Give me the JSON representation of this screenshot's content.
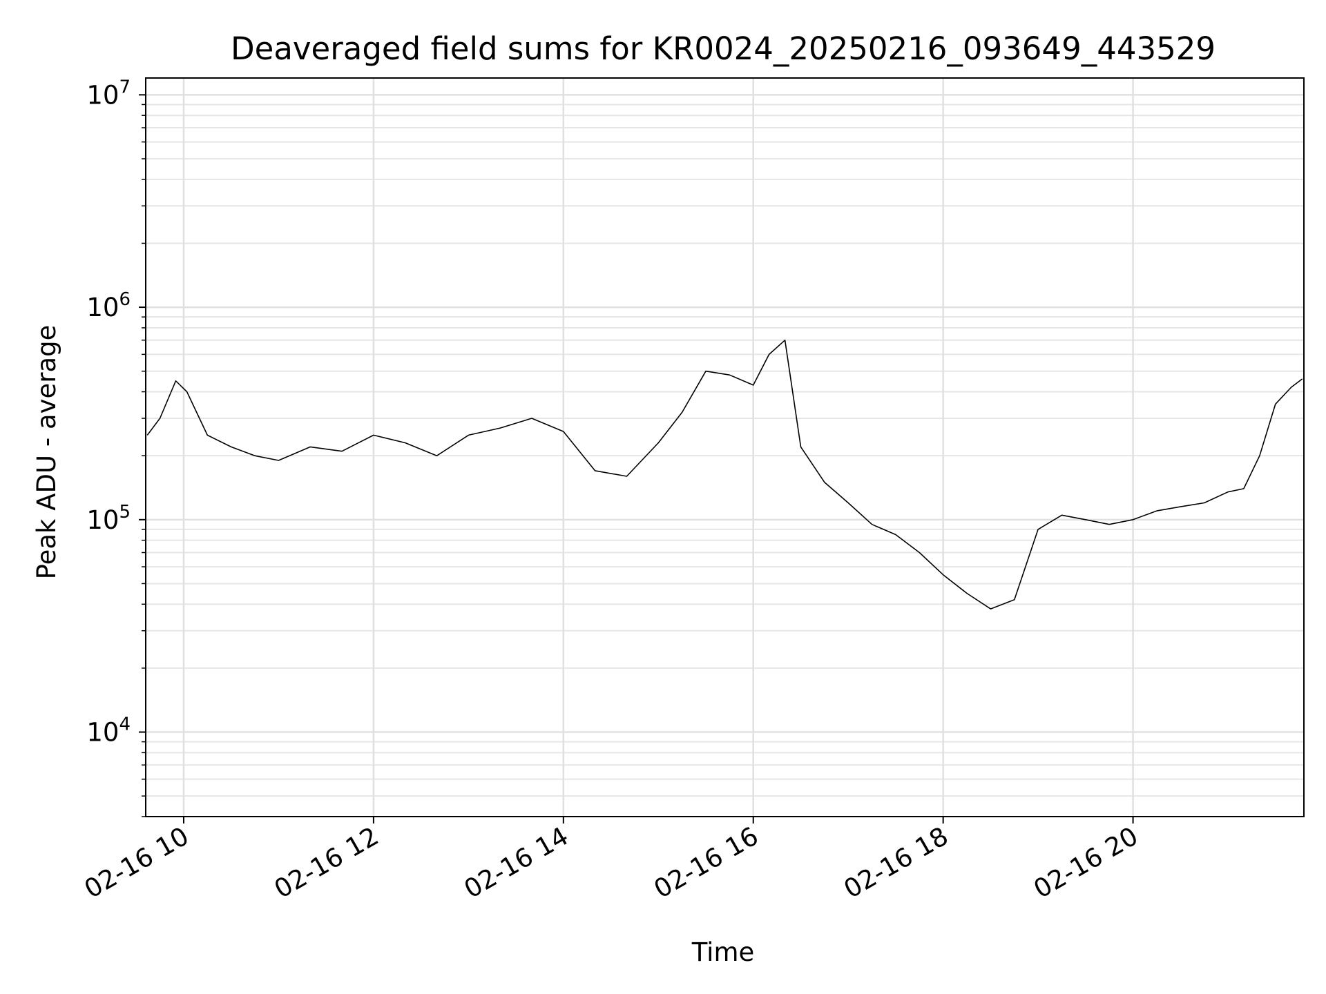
{
  "chart_data": {
    "type": "line",
    "title": "Deaveraged field sums for KR0024_20250216_093649_443529",
    "xlabel": "Time",
    "ylabel": "Peak ADU - average",
    "y_scale": "log",
    "ylim": [
      4000,
      12000000
    ],
    "xlim": [
      "2025-02-16T09:36",
      "2025-02-16T21:48"
    ],
    "x_ticks": [
      {
        "value": "2025-02-16T10:00",
        "label": "02-16 10"
      },
      {
        "value": "2025-02-16T12:00",
        "label": "02-16 12"
      },
      {
        "value": "2025-02-16T14:00",
        "label": "02-16 14"
      },
      {
        "value": "2025-02-16T16:00",
        "label": "02-16 16"
      },
      {
        "value": "2025-02-16T18:00",
        "label": "02-16 18"
      },
      {
        "value": "2025-02-16T20:00",
        "label": "02-16 20"
      }
    ],
    "y_ticks": [
      {
        "value": 10000,
        "base": "10",
        "exp": "4"
      },
      {
        "value": 100000,
        "base": "10",
        "exp": "5"
      },
      {
        "value": 1000000,
        "base": "10",
        "exp": "6"
      },
      {
        "value": 10000000,
        "base": "10",
        "exp": "7"
      }
    ],
    "grid": true,
    "legend": "none",
    "line_color": "#000000",
    "series": [
      {
        "x": [
          "2025-02-16T09:37",
          "2025-02-16T09:45",
          "2025-02-16T09:55",
          "2025-02-16T10:02",
          "2025-02-16T10:15",
          "2025-02-16T10:30",
          "2025-02-16T10:45",
          "2025-02-16T11:00",
          "2025-02-16T11:20",
          "2025-02-16T11:40",
          "2025-02-16T12:00",
          "2025-02-16T12:20",
          "2025-02-16T12:40",
          "2025-02-16T13:00",
          "2025-02-16T13:20",
          "2025-02-16T13:40",
          "2025-02-16T14:00",
          "2025-02-16T14:20",
          "2025-02-16T14:40",
          "2025-02-16T15:00",
          "2025-02-16T15:15",
          "2025-02-16T15:30",
          "2025-02-16T15:45",
          "2025-02-16T16:00",
          "2025-02-16T16:10",
          "2025-02-16T16:20",
          "2025-02-16T16:30",
          "2025-02-16T16:45",
          "2025-02-16T17:00",
          "2025-02-16T17:15",
          "2025-02-16T17:30",
          "2025-02-16T17:45",
          "2025-02-16T18:00",
          "2025-02-16T18:15",
          "2025-02-16T18:30",
          "2025-02-16T18:45",
          "2025-02-16T19:00",
          "2025-02-16T19:15",
          "2025-02-16T19:30",
          "2025-02-16T19:45",
          "2025-02-16T20:00",
          "2025-02-16T20:15",
          "2025-02-16T20:30",
          "2025-02-16T20:45",
          "2025-02-16T21:00",
          "2025-02-16T21:10",
          "2025-02-16T21:20",
          "2025-02-16T21:30",
          "2025-02-16T21:40",
          "2025-02-16T21:47"
        ],
        "y": [
          250000,
          300000,
          450000,
          400000,
          250000,
          220000,
          200000,
          190000,
          220000,
          210000,
          250000,
          230000,
          200000,
          250000,
          270000,
          300000,
          260000,
          170000,
          160000,
          230000,
          320000,
          500000,
          480000,
          430000,
          600000,
          700000,
          220000,
          150000,
          120000,
          95000,
          85000,
          70000,
          55000,
          45000,
          38000,
          42000,
          90000,
          105000,
          100000,
          95000,
          100000,
          110000,
          115000,
          120000,
          135000,
          140000,
          200000,
          350000,
          420000,
          460000
        ]
      }
    ]
  }
}
